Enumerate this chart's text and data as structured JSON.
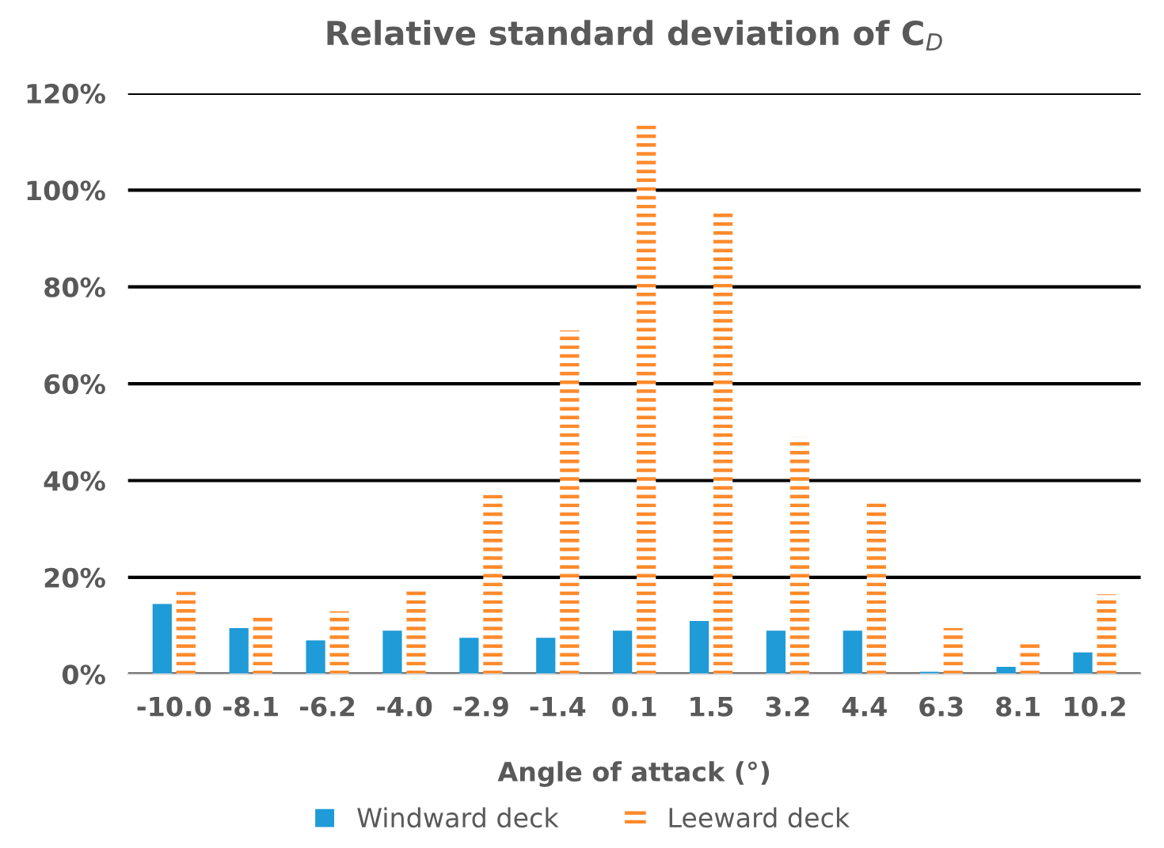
{
  "chart_data": {
    "type": "bar",
    "title": "Relative standard deviation of C$_{D}$",
    "xlabel": "Angle of attack (°)",
    "categories": [
      "-10.0",
      "-8.1",
      "-6.2",
      "-4.0",
      "-2.9",
      "-1.4",
      "0.1",
      "1.5",
      "3.2",
      "4.4",
      "6.3",
      "8.1",
      "10.2"
    ],
    "series": [
      {
        "name": "Windward deck",
        "color": "#1f9bd7",
        "values": [
          14.5,
          9.5,
          7,
          9,
          7.5,
          7.5,
          9,
          11,
          9,
          9,
          0.5,
          1.5,
          4.5
        ]
      },
      {
        "name": "Leeward deck",
        "color": "#ff8a2b",
        "values": [
          17,
          12,
          13,
          18,
          37,
          71,
          113.5,
          96,
          49,
          36,
          9.5,
          6.5,
          16.5
        ]
      }
    ],
    "ylim": [
      0,
      120
    ],
    "yticks": [
      {
        "value": 0,
        "label": "0%"
      },
      {
        "value": 20,
        "label": "20%"
      },
      {
        "value": 40,
        "label": "40%"
      },
      {
        "value": 60,
        "label": "60%"
      },
      {
        "value": 80,
        "label": "80%"
      },
      {
        "value": 100,
        "label": "100%"
      },
      {
        "value": 120,
        "label": "120%"
      }
    ],
    "grid": "y",
    "legend": "bottom"
  }
}
